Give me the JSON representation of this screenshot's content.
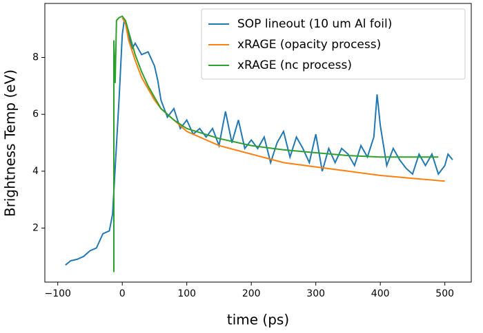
{
  "chart_data": {
    "type": "line",
    "xlabel": "time (ps)",
    "ylabel": "Brightness Temp (eV)",
    "xlim": [
      -120,
      541
    ],
    "ylim": [
      0.1,
      9.9
    ],
    "xticks": [
      {
        "value": -100,
        "label": "−100"
      },
      0,
      100,
      200,
      300,
      400,
      500
    ],
    "yticks": [
      2,
      4,
      6,
      8
    ],
    "legend": "upper right",
    "series": [
      {
        "name": "SOP lineout (10 um Al foil)",
        "color": "#1f77b4",
        "x": [
          -88,
          -80,
          -70,
          -60,
          -50,
          -40,
          -30,
          -20,
          -15,
          -10,
          -5,
          0,
          3,
          8,
          15,
          20,
          30,
          40,
          50,
          55,
          60,
          70,
          80,
          90,
          100,
          110,
          120,
          130,
          140,
          150,
          160,
          170,
          180,
          190,
          200,
          210,
          220,
          230,
          240,
          250,
          260,
          270,
          280,
          290,
          300,
          310,
          320,
          330,
          340,
          350,
          360,
          370,
          380,
          390,
          395,
          400,
          410,
          420,
          430,
          440,
          450,
          460,
          470,
          480,
          490,
          500,
          505,
          512
        ],
        "values": [
          0.7,
          0.85,
          0.9,
          1.0,
          1.2,
          1.3,
          1.8,
          1.9,
          2.5,
          4.5,
          6.5,
          8.8,
          9.3,
          9.0,
          8.3,
          8.5,
          8.1,
          8.2,
          7.7,
          7.2,
          6.5,
          5.9,
          6.2,
          5.5,
          5.8,
          5.3,
          5.5,
          5.2,
          5.5,
          4.9,
          6.1,
          5.0,
          5.8,
          4.8,
          5.1,
          4.8,
          5.2,
          4.3,
          5.0,
          5.4,
          4.5,
          5.2,
          4.8,
          4.3,
          5.3,
          4.0,
          4.8,
          4.3,
          4.8,
          4.6,
          4.2,
          4.9,
          4.5,
          5.2,
          6.7,
          5.6,
          4.2,
          4.8,
          4.4,
          4.1,
          3.9,
          4.6,
          4.2,
          4.6,
          3.9,
          4.2,
          4.6,
          4.4
        ]
      },
      {
        "name": "xRAGE (opacity process)",
        "color": "#ff7f0e",
        "x": [
          0,
          5,
          10,
          20,
          30,
          40,
          50,
          60,
          80,
          100,
          150,
          200,
          250,
          300,
          350,
          400,
          450,
          500
        ],
        "values": [
          9.4,
          9.2,
          8.6,
          7.9,
          7.3,
          6.9,
          6.5,
          6.2,
          5.8,
          5.4,
          4.9,
          4.6,
          4.3,
          4.15,
          4.0,
          3.85,
          3.75,
          3.65
        ]
      },
      {
        "name": "xRAGE (nc process)",
        "color": "#2ca02c",
        "x": [
          -13,
          -13,
          -11,
          -9,
          -5,
          0,
          5,
          10,
          20,
          30,
          40,
          50,
          60,
          80,
          100,
          150,
          200,
          250,
          300,
          350,
          400,
          450,
          490
        ],
        "values": [
          0.45,
          8.6,
          7.1,
          9.3,
          9.4,
          9.45,
          9.3,
          8.9,
          8.1,
          7.5,
          7.0,
          6.6,
          6.2,
          5.8,
          5.5,
          5.15,
          4.9,
          4.75,
          4.65,
          4.55,
          4.5,
          4.5,
          4.5
        ]
      }
    ]
  }
}
